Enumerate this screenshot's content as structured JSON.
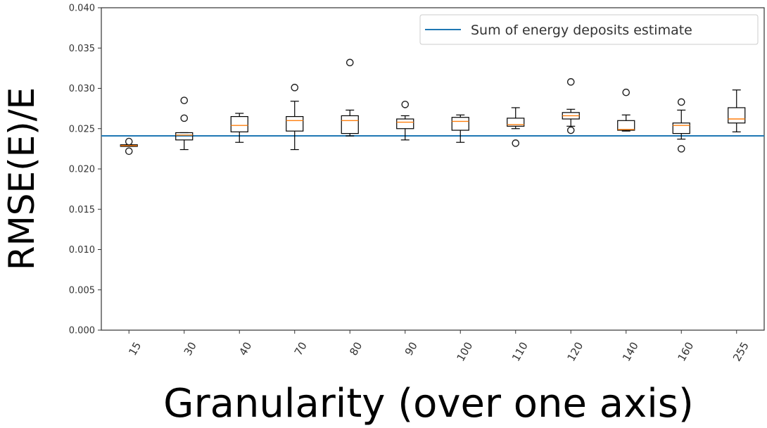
{
  "chart_data": {
    "type": "box",
    "xlabel": "Granularity (over one axis)",
    "ylabel": "RMSE(E)/E",
    "ylim": [
      0,
      0.04
    ],
    "yticks": [
      "0.000",
      "0.005",
      "0.010",
      "0.015",
      "0.020",
      "0.025",
      "0.030",
      "0.035",
      "0.040"
    ],
    "categories": [
      "15",
      "30",
      "40",
      "70",
      "80",
      "90",
      "100",
      "110",
      "120",
      "140",
      "160",
      "255"
    ],
    "boxes": [
      {
        "whisker_low": 0.0228,
        "q1": 0.0228,
        "median": 0.0229,
        "q3": 0.023,
        "whisker_high": 0.023,
        "outliers": [
          0.0222,
          0.0234
        ]
      },
      {
        "whisker_low": 0.0224,
        "q1": 0.0236,
        "median": 0.0242,
        "q3": 0.0245,
        "whisker_high": 0.0245,
        "outliers": [
          0.0263,
          0.0285
        ]
      },
      {
        "whisker_low": 0.0233,
        "q1": 0.0246,
        "median": 0.0254,
        "q3": 0.0265,
        "whisker_high": 0.0269,
        "outliers": []
      },
      {
        "whisker_low": 0.0224,
        "q1": 0.0247,
        "median": 0.026,
        "q3": 0.0265,
        "whisker_high": 0.0284,
        "outliers": [
          0.0301
        ]
      },
      {
        "whisker_low": 0.0241,
        "q1": 0.0244,
        "median": 0.026,
        "q3": 0.0266,
        "whisker_high": 0.0273,
        "outliers": [
          0.0332
        ]
      },
      {
        "whisker_low": 0.0236,
        "q1": 0.025,
        "median": 0.0258,
        "q3": 0.0262,
        "whisker_high": 0.0266,
        "outliers": [
          0.028
        ]
      },
      {
        "whisker_low": 0.0233,
        "q1": 0.0248,
        "median": 0.0259,
        "q3": 0.0264,
        "whisker_high": 0.0267,
        "outliers": []
      },
      {
        "whisker_low": 0.025,
        "q1": 0.0253,
        "median": 0.0255,
        "q3": 0.0263,
        "whisker_high": 0.0276,
        "outliers": [
          0.0232
        ]
      },
      {
        "whisker_low": 0.0253,
        "q1": 0.0262,
        "median": 0.0266,
        "q3": 0.027,
        "whisker_high": 0.0274,
        "outliers": [
          0.0248,
          0.0308
        ]
      },
      {
        "whisker_low": 0.0247,
        "q1": 0.0248,
        "median": 0.0249,
        "q3": 0.026,
        "whisker_high": 0.0267,
        "outliers": [
          0.0295
        ]
      },
      {
        "whisker_low": 0.0237,
        "q1": 0.0244,
        "median": 0.0254,
        "q3": 0.0257,
        "whisker_high": 0.0273,
        "outliers": [
          0.0225,
          0.0283
        ]
      },
      {
        "whisker_low": 0.0246,
        "q1": 0.0257,
        "median": 0.0262,
        "q3": 0.0276,
        "whisker_high": 0.0298,
        "outliers": []
      }
    ],
    "reference_line": {
      "label": "Sum of energy deposits estimate",
      "y": 0.0241,
      "color": "#1f77b4"
    },
    "legend": {
      "placement": "top-right",
      "entries": [
        "Sum of energy deposits estimate"
      ]
    },
    "grid": false,
    "colors": {
      "box": "#000000",
      "median": "#ff7f0e",
      "reference": "#1f77b4"
    }
  }
}
